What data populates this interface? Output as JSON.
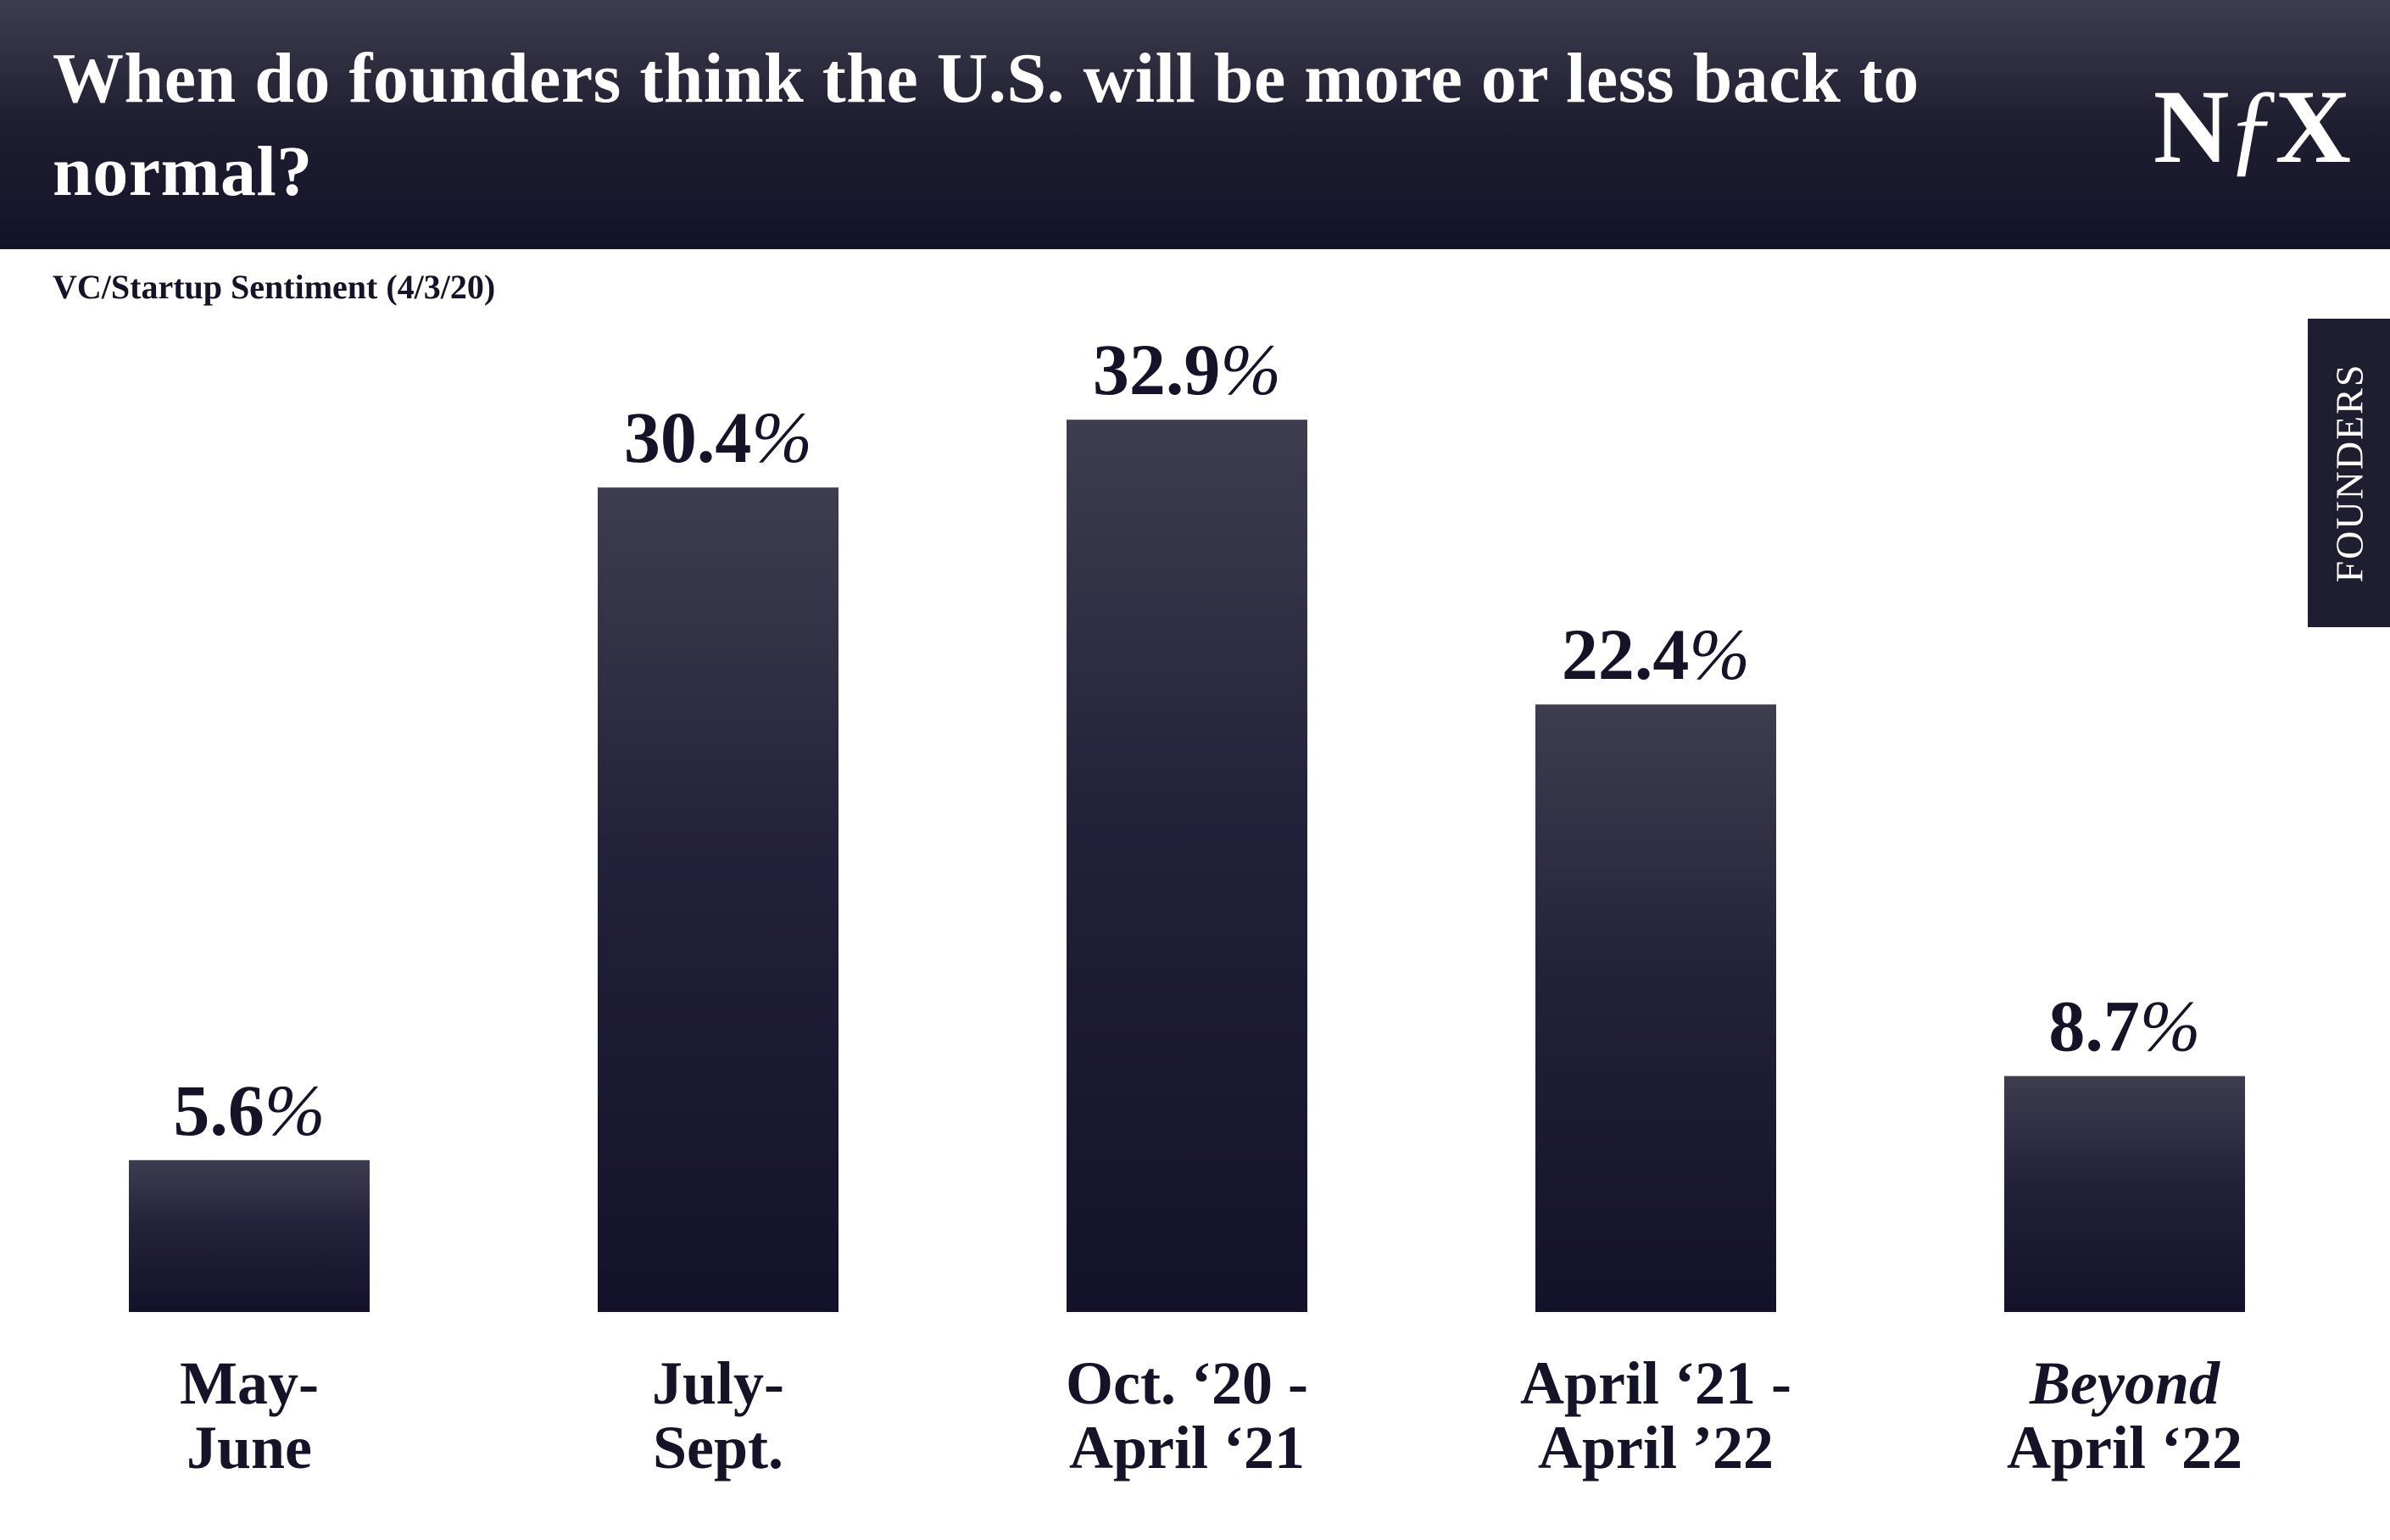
{
  "header": {
    "title": "When do founders think the U.S. will be more or less back to normal?",
    "logo_text": "NfX"
  },
  "subtitle": "VC/Startup Sentiment (4/3/20)",
  "side_tab": {
    "label": "FOUNDERS"
  },
  "colors": {
    "bar_top": "#3e3d4f",
    "bar_bottom": "#13122a",
    "header_bg": "#1f1e30",
    "text": "#141327"
  },
  "chart_data": {
    "type": "bar",
    "categories": [
      [
        "May-",
        "June"
      ],
      [
        "July-",
        "Sept."
      ],
      [
        "Oct. ‘20 -",
        "April ‘21"
      ],
      [
        "April ‘21 -",
        "April ’22"
      ],
      [
        "Beyond",
        "April ‘22"
      ]
    ],
    "italic_first_line": [
      false,
      false,
      false,
      false,
      true
    ],
    "values": [
      5.6,
      30.4,
      32.9,
      22.4,
      8.7
    ],
    "value_labels": [
      "5.6",
      "30.4",
      "32.9",
      "22.4",
      "8.7"
    ],
    "value_suffix": "%",
    "ylim": [
      0,
      35
    ],
    "grid": false,
    "legend": "none"
  }
}
